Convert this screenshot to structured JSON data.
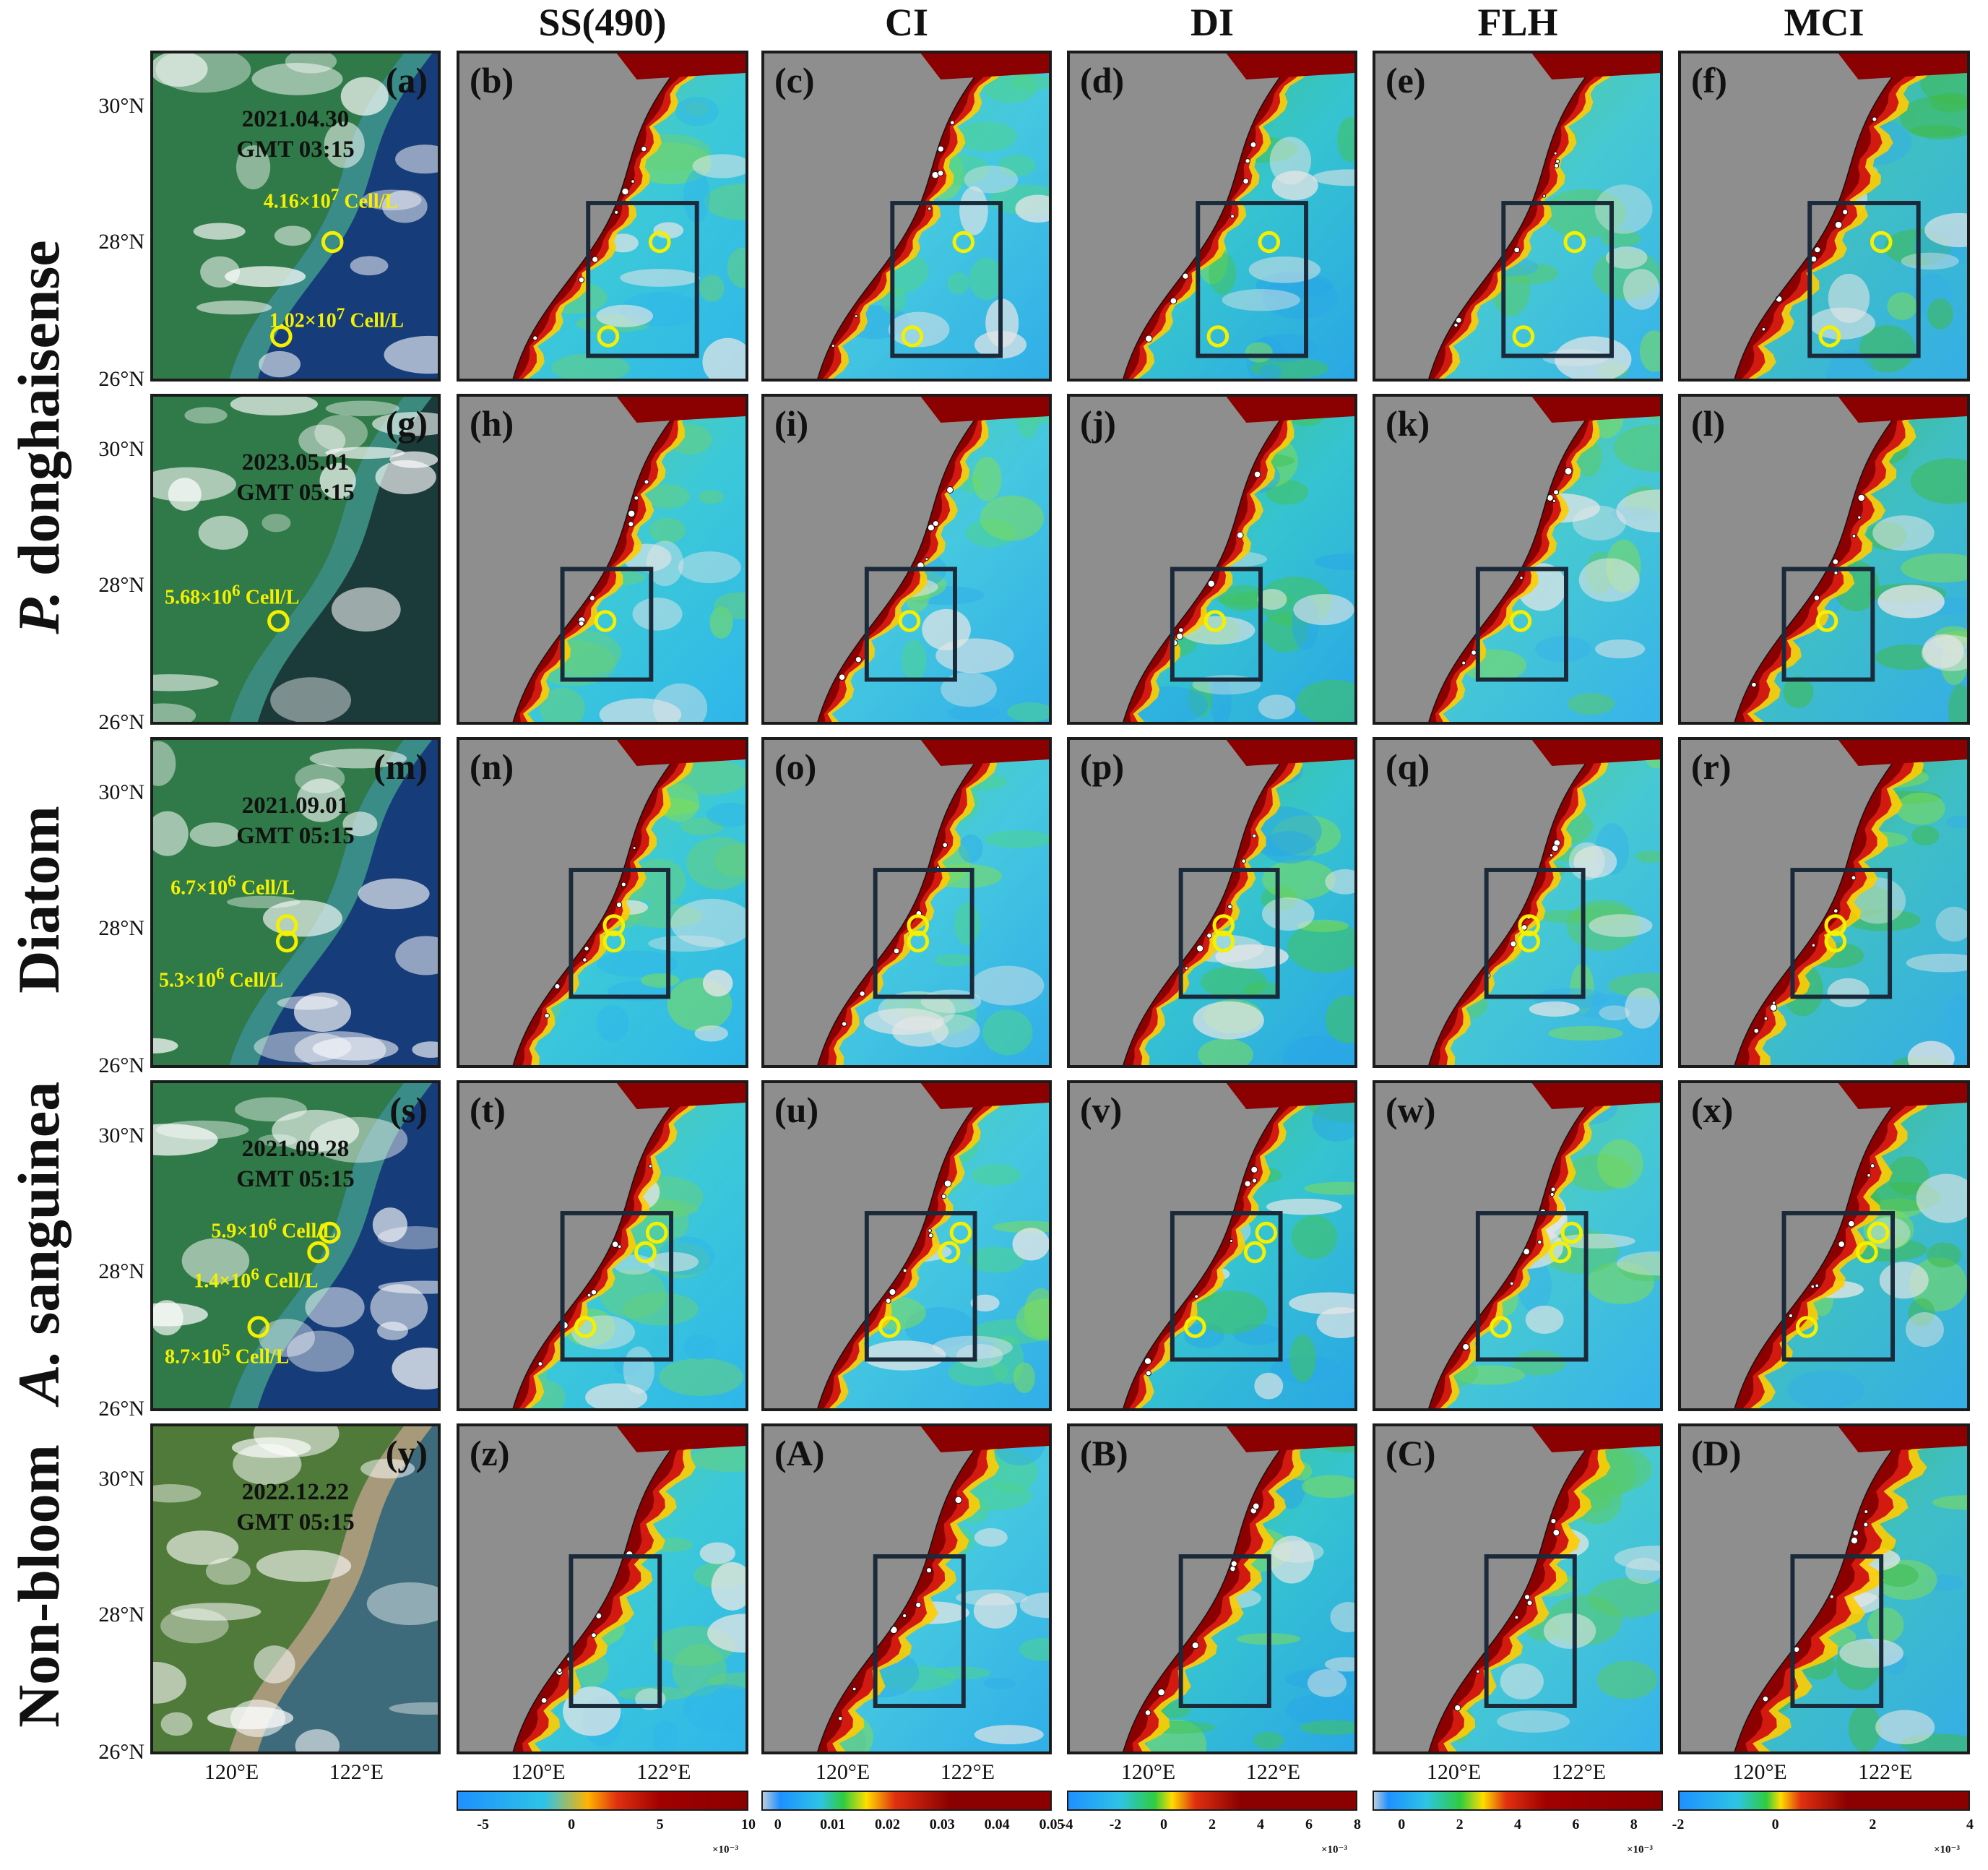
{
  "columns": [
    "SS(490)",
    "CI",
    "DI",
    "FLH",
    "MCI"
  ],
  "rows": [
    {
      "label_plain": "",
      "label_italic": "P.",
      "label_rest": " donghaisense",
      "group": "P",
      "span": 2
    },
    {
      "label_plain": "",
      "label_italic": "",
      "label_rest": "Diatom",
      "group": "D",
      "span": 1
    },
    {
      "label_plain": "",
      "label_italic": "A.",
      "label_rest": " sanguinea",
      "group": "A",
      "span": 1
    },
    {
      "label_plain": "",
      "label_italic": "",
      "label_rest": "Non-bloom",
      "group": "N",
      "span": 1
    }
  ],
  "panel_rows": [
    {
      "date": "2021.04.30",
      "time": "GMT 03:15",
      "labels": [
        "(a)",
        "(b)",
        "(c)",
        "(d)",
        "(e)",
        "(f)"
      ],
      "cells": [
        {
          "mant": "4.16×10",
          "exp": "7",
          "unit": " Cell/L"
        },
        {
          "mant": "1.02×10",
          "exp": "7",
          "unit": " Cell/L"
        }
      ]
    },
    {
      "date": "2023.05.01",
      "time": "GMT 05:15",
      "labels": [
        "(g)",
        "(h)",
        "(i)",
        "(j)",
        "(k)",
        "(l)"
      ],
      "cells": [
        {
          "mant": "5.68×10",
          "exp": "6",
          "unit": " Cell/L"
        }
      ]
    },
    {
      "date": "2021.09.01",
      "time": "GMT 05:15",
      "labels": [
        "(m)",
        "(n)",
        "(o)",
        "(p)",
        "(q)",
        "(r)"
      ],
      "cells": [
        {
          "mant": "6.7×10",
          "exp": "6",
          "unit": " Cell/L"
        },
        {
          "mant": "5.3×10",
          "exp": "6",
          "unit": " Cell/L"
        }
      ]
    },
    {
      "date": "2021.09.28",
      "time": "GMT 05:15",
      "labels": [
        "(s)",
        "(t)",
        "(u)",
        "(v)",
        "(w)",
        "(x)"
      ],
      "cells": [
        {
          "mant": "5.9×10",
          "exp": "6",
          "unit": " Cell/L"
        },
        {
          "mant": "1.4×10",
          "exp": "6",
          "unit": " Cell/L"
        },
        {
          "mant": "8.7×10",
          "exp": "5",
          "unit": " Cell/L"
        }
      ]
    },
    {
      "date": "2022.12.22",
      "time": "GMT 05:15",
      "labels": [
        "(y)",
        "(z)",
        "(A)",
        "(B)",
        "(C)",
        "(D)"
      ],
      "cells": []
    }
  ],
  "lat_labels": [
    "30°N",
    "28°N",
    "26°N"
  ],
  "lon_labels": [
    "120°E",
    "122°E"
  ],
  "colorbars": [
    {
      "ticks": [
        "-5",
        "0",
        "5",
        "10"
      ],
      "tick_values": [
        -5,
        0,
        5,
        10
      ],
      "range": [
        -6.5,
        10
      ],
      "exp": "×10⁻³"
    },
    {
      "ticks": [
        "0",
        "0.01",
        "0.02",
        "0.03",
        "0.04",
        "0.05"
      ],
      "tick_values": [
        0,
        0.01,
        0.02,
        0.03,
        0.04,
        0.05
      ],
      "range": [
        -0.003,
        0.05
      ],
      "exp": ""
    },
    {
      "ticks": [
        "-4",
        "-2",
        "0",
        "2",
        "4",
        "6",
        "8"
      ],
      "tick_values": [
        -4,
        -2,
        0,
        2,
        4,
        6,
        8
      ],
      "range": [
        -4,
        8
      ],
      "exp": "×10⁻³"
    },
    {
      "ticks": [
        "0",
        "2",
        "4",
        "6",
        "8"
      ],
      "tick_values": [
        0,
        2,
        4,
        6,
        8
      ],
      "range": [
        -1,
        9
      ],
      "exp": "×10⁻³"
    },
    {
      "ticks": [
        "-2",
        "0",
        "2",
        "4"
      ],
      "tick_values": [
        -2,
        0,
        2,
        4
      ],
      "range": [
        -2,
        4
      ],
      "exp": "×10⁻³"
    }
  ],
  "colors": {
    "land": "#8e8e8e",
    "ocean_blue": "#29a8e8",
    "bloom": "#8b0000",
    "marker": "#f4f000",
    "box": "#1b2a3a"
  }
}
